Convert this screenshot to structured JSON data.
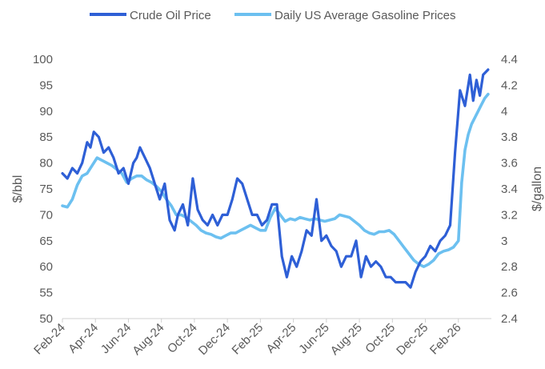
{
  "colors": {
    "crude": "#2e5fd6",
    "gasoline": "#6cc0f0",
    "axis": "#d0d0d0",
    "text": "#595959"
  },
  "chart_data": {
    "type": "line",
    "title": "",
    "legend": {
      "position": "top",
      "entries": [
        "Crude Oil Price",
        "Daily US Average Gasoline Prices"
      ]
    },
    "xlabel": "",
    "x_ticks": [
      "Feb-24",
      "Apr-24",
      "Jun-24",
      "Aug-24",
      "Oct-24",
      "Dec-24",
      "Feb-25",
      "Apr-25",
      "Jun-25",
      "Aug-25",
      "Oct-25",
      "Dec-25",
      "Feb-26"
    ],
    "y_left": {
      "label": "$/bbl",
      "lim": [
        50,
        100
      ],
      "ticks": [
        "50",
        "55",
        "60",
        "65",
        "70",
        "75",
        "80",
        "85",
        "90",
        "95",
        "100"
      ]
    },
    "y_right": {
      "label": "$/gallon",
      "lim": [
        2.4,
        4.4
      ],
      "ticks": [
        "2.4",
        "2.6",
        "2.8",
        "3",
        "3.2",
        "3.4",
        "3.6",
        "3.8",
        "4",
        "4.2",
        "4.4"
      ]
    },
    "series": [
      {
        "name": "Crude Oil Price",
        "axis": "left",
        "color": "#2e5fd6",
        "x_months": [
          0,
          0.3,
          0.6,
          0.9,
          1.2,
          1.5,
          1.7,
          1.9,
          2.2,
          2.5,
          2.8,
          3.1,
          3.4,
          3.7,
          4.0,
          4.3,
          4.5,
          4.7,
          5.0,
          5.3,
          5.6,
          5.9,
          6.2,
          6.5,
          6.8,
          7.0,
          7.3,
          7.6,
          7.9,
          8.2,
          8.5,
          8.8,
          9.1,
          9.4,
          9.7,
          10.0,
          10.3,
          10.6,
          10.9,
          11.2,
          11.5,
          11.8,
          12.1,
          12.4,
          12.7,
          13.0,
          13.3,
          13.6,
          13.9,
          14.2,
          14.5,
          14.8,
          15.1,
          15.4,
          15.7,
          16.0,
          16.3,
          16.6,
          16.9,
          17.2,
          17.5,
          17.8,
          18.1,
          18.4,
          18.7,
          19.0,
          19.3,
          19.6,
          19.9,
          20.2,
          20.5,
          20.8,
          21.1,
          21.4,
          21.7,
          22.0,
          22.3,
          22.6,
          22.9,
          23.2,
          23.5,
          23.8,
          24.1,
          24.4,
          24.7,
          24.9,
          25.1,
          25.3,
          25.5,
          25.8
        ],
        "values": [
          78,
          77,
          79,
          78,
          80,
          84,
          83,
          86,
          85,
          82,
          83,
          81,
          78,
          79,
          76,
          80,
          81,
          83,
          81,
          79,
          76,
          73,
          76,
          69,
          67,
          70,
          72,
          68,
          77,
          71,
          69,
          68,
          70,
          68,
          70,
          70,
          73,
          77,
          76,
          73,
          70,
          70,
          68,
          69,
          72,
          72,
          62,
          58,
          62,
          60,
          63,
          67,
          66,
          73,
          65,
          66,
          64,
          63,
          60,
          62,
          62,
          65,
          58,
          62,
          60,
          61,
          60,
          58,
          58,
          57,
          57,
          57,
          56,
          59,
          61,
          62,
          64,
          63,
          65,
          66,
          68,
          82,
          94,
          91,
          97,
          92,
          96,
          93,
          97,
          98
        ]
      },
      {
        "name": "Daily US Average Gasoline Prices",
        "axis": "right",
        "color": "#6cc0f0",
        "x_months": [
          0,
          0.3,
          0.6,
          0.9,
          1.2,
          1.5,
          1.8,
          2.1,
          2.4,
          2.7,
          3.0,
          3.3,
          3.6,
          3.9,
          4.2,
          4.5,
          4.8,
          5.1,
          5.4,
          5.7,
          6.0,
          6.3,
          6.6,
          6.9,
          7.2,
          7.5,
          7.8,
          8.1,
          8.4,
          8.7,
          9.0,
          9.3,
          9.6,
          9.9,
          10.2,
          10.5,
          10.8,
          11.1,
          11.4,
          11.7,
          12.0,
          12.3,
          12.6,
          12.9,
          13.2,
          13.5,
          13.8,
          14.1,
          14.4,
          14.7,
          15.0,
          15.3,
          15.6,
          15.9,
          16.2,
          16.5,
          16.8,
          17.1,
          17.4,
          17.7,
          18.0,
          18.3,
          18.6,
          18.9,
          19.2,
          19.5,
          19.8,
          20.1,
          20.4,
          20.7,
          21.0,
          21.3,
          21.6,
          21.9,
          22.2,
          22.5,
          22.8,
          23.1,
          23.4,
          23.7,
          24.0,
          24.2,
          24.4,
          24.6,
          24.8,
          25.0,
          25.2,
          25.4,
          25.6,
          25.8
        ],
        "values": [
          3.27,
          3.26,
          3.32,
          3.43,
          3.5,
          3.52,
          3.58,
          3.64,
          3.62,
          3.6,
          3.58,
          3.55,
          3.52,
          3.45,
          3.48,
          3.5,
          3.5,
          3.47,
          3.45,
          3.42,
          3.38,
          3.32,
          3.27,
          3.2,
          3.2,
          3.18,
          3.15,
          3.12,
          3.08,
          3.06,
          3.05,
          3.03,
          3.02,
          3.04,
          3.06,
          3.06,
          3.08,
          3.1,
          3.12,
          3.1,
          3.08,
          3.08,
          3.18,
          3.25,
          3.2,
          3.15,
          3.17,
          3.16,
          3.18,
          3.17,
          3.16,
          3.17,
          3.16,
          3.15,
          3.16,
          3.17,
          3.2,
          3.19,
          3.18,
          3.15,
          3.12,
          3.08,
          3.06,
          3.05,
          3.07,
          3.07,
          3.08,
          3.05,
          3.0,
          2.95,
          2.9,
          2.85,
          2.82,
          2.8,
          2.82,
          2.85,
          2.9,
          2.92,
          2.93,
          2.95,
          3.0,
          3.45,
          3.7,
          3.82,
          3.9,
          3.95,
          4.0,
          4.05,
          4.1,
          4.13
        ]
      }
    ]
  }
}
